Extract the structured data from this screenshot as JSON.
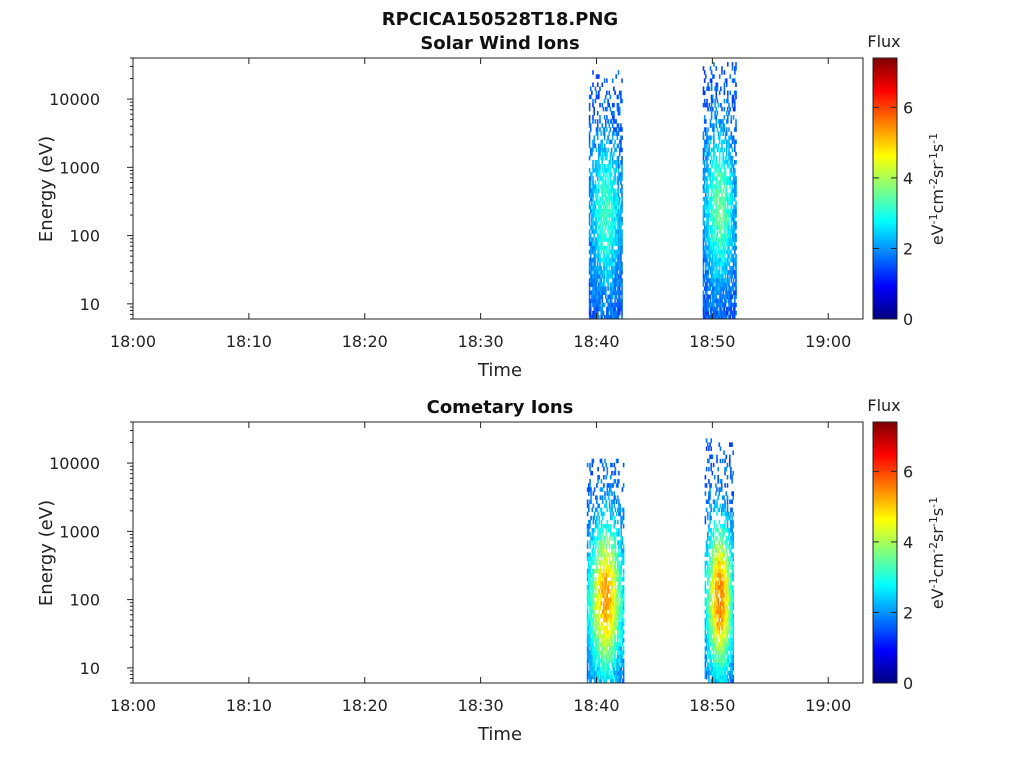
{
  "figure": {
    "title": "RPCICA150528T18.PNG"
  },
  "colorbar": {
    "label": "Flux",
    "unit_base": [
      "eV",
      "cm",
      "sr",
      "s"
    ],
    "unit_exp": [
      "-1",
      "-2",
      "-1",
      "-1"
    ],
    "ticks": [
      "0",
      "2",
      "4",
      "6"
    ],
    "range": [
      0,
      7.4
    ],
    "colormap": "jet"
  },
  "chart_data": [
    {
      "type": "heatmap",
      "title": "Solar Wind Ions",
      "xlabel": "Time",
      "ylabel": "Energy (eV)",
      "x_ticklabels": [
        "18:00",
        "18:10",
        "18:20",
        "18:30",
        "18:40",
        "18:50",
        "19:00"
      ],
      "y_ticklabels": [
        "10",
        "100",
        "1000",
        "10000"
      ],
      "y_scale": "log",
      "ylim": [
        6,
        40000
      ],
      "xlim": [
        "18:00",
        "19:03"
      ],
      "bursts": [
        {
          "t_start": "18:39:20",
          "t_end": "18:42:10",
          "e_min": 6,
          "e_max": 25000,
          "core_energy": 200,
          "peak_flux": 3.3
        },
        {
          "t_start": "18:49:10",
          "t_end": "18:52:00",
          "e_min": 6,
          "e_max": 32000,
          "core_energy": 250,
          "peak_flux": 3.6
        }
      ]
    },
    {
      "type": "heatmap",
      "title": "Cometary Ions",
      "xlabel": "Time",
      "ylabel": "Energy (eV)",
      "x_ticklabels": [
        "18:00",
        "18:10",
        "18:20",
        "18:30",
        "18:40",
        "18:50",
        "19:00"
      ],
      "y_ticklabels": [
        "10",
        "100",
        "1000",
        "10000"
      ],
      "y_scale": "log",
      "ylim": [
        6,
        40000
      ],
      "xlim": [
        "18:00",
        "19:03"
      ],
      "bursts": [
        {
          "t_start": "18:39:10",
          "t_end": "18:42:20",
          "e_min": 6,
          "e_max": 11000,
          "core_energy": 100,
          "peak_flux": 5.4
        },
        {
          "t_start": "18:49:20",
          "t_end": "18:51:50",
          "e_min": 6,
          "e_max": 22000,
          "core_energy": 100,
          "peak_flux": 5.6
        }
      ]
    }
  ]
}
